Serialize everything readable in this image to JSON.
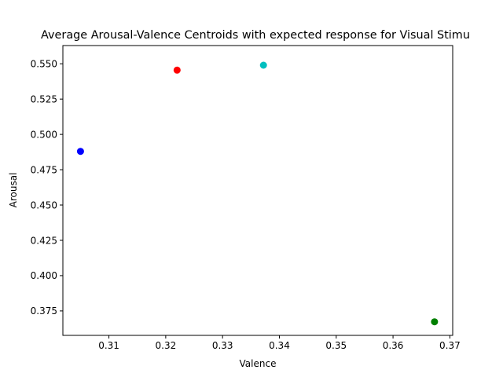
{
  "chart_data": {
    "type": "scatter",
    "title": "Average Arousal-Valence Centroids with expected response for Visual Stimu",
    "xlabel": "Valence",
    "ylabel": "Arousal",
    "xlim": [
      0.3019,
      0.3705
    ],
    "ylim": [
      0.3577,
      0.5629
    ],
    "xticks": [
      0.31,
      0.32,
      0.33,
      0.34,
      0.35,
      0.36,
      0.37
    ],
    "xtick_labels": [
      "0.31",
      "0.32",
      "0.33",
      "0.34",
      "0.35",
      "0.36",
      "0.37"
    ],
    "yticks": [
      0.375,
      0.4,
      0.425,
      0.45,
      0.475,
      0.5,
      0.525,
      0.55
    ],
    "ytick_labels": [
      "0.375",
      "0.400",
      "0.425",
      "0.450",
      "0.475",
      "0.500",
      "0.525",
      "0.550"
    ],
    "grid": false,
    "points": [
      {
        "x": 0.305,
        "y": 0.488,
        "color": "#0000ff"
      },
      {
        "x": 0.322,
        "y": 0.5455,
        "color": "#ff0000"
      },
      {
        "x": 0.3372,
        "y": 0.549,
        "color": "#00bfbf"
      },
      {
        "x": 0.3673,
        "y": 0.3673,
        "color": "#008000"
      }
    ]
  }
}
